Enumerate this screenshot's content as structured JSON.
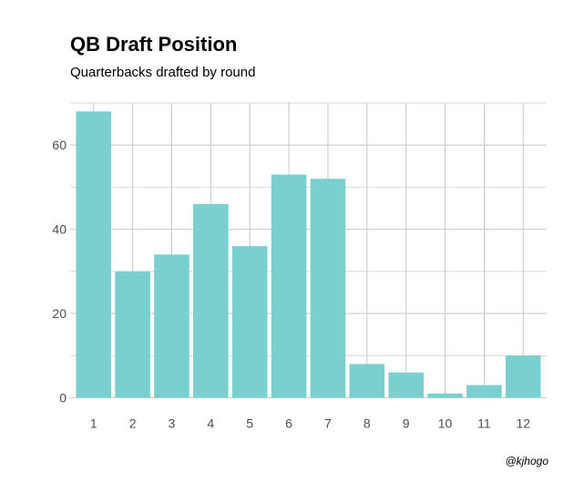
{
  "chart_data": {
    "type": "bar",
    "title": "QB Draft Position",
    "subtitle": "Quarterbacks drafted by round",
    "caption": "@kjhogo",
    "xlabel": "",
    "ylabel": "",
    "categories": [
      "1",
      "2",
      "3",
      "4",
      "5",
      "6",
      "7",
      "8",
      "9",
      "10",
      "11",
      "12"
    ],
    "values": [
      68,
      30,
      34,
      46,
      36,
      53,
      52,
      8,
      6,
      1,
      3,
      10
    ],
    "ylim": [
      0,
      70
    ],
    "yticks": [
      "0",
      "20",
      "40",
      "60"
    ],
    "grid": true,
    "legend": "none",
    "bar_color": "#7acfcf",
    "grid_color": "#cccccc"
  }
}
